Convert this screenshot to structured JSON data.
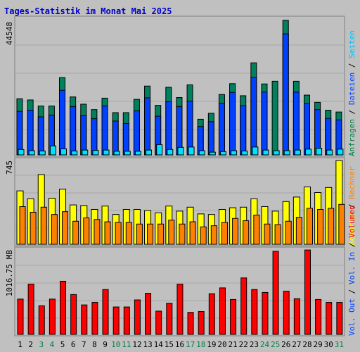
{
  "title": "Tages-Statistik im Monat Mai 2025",
  "colors": {
    "background": "#c0c0c0",
    "title": "#0000cc",
    "anfragen": "#00805c",
    "dateien": "#0040ff",
    "seiten": "#00e0ff",
    "besuche": "#ffff00",
    "rechner": "#ff8000",
    "volumen": "#ff0000",
    "grid": "#a8a8a8",
    "weekend_label": "#008040"
  },
  "right_labels": {
    "top": [
      {
        "text": "Anfragen",
        "color": "#008040"
      },
      {
        "text": "Dateien",
        "color": "#0040ff"
      },
      {
        "text": "Seiten",
        "color": "#00c0ff"
      }
    ],
    "middle": [
      {
        "text": "Besuche",
        "color": "#ffff00"
      },
      {
        "text": "Rechner",
        "color": "#ff8000"
      }
    ],
    "bottom": [
      {
        "text": "Vol. Out",
        "color": "#0040ff"
      },
      {
        "text": "Vol. In",
        "color": "#0040ff"
      },
      {
        "text": "Volumen",
        "color": "#ff0000"
      }
    ],
    "separator": " / "
  },
  "chart_data": [
    {
      "type": "bar",
      "panel": "requests",
      "ymax_label": "44548",
      "ylim": [
        0,
        44548
      ],
      "categories": [
        "1",
        "2",
        "3",
        "4",
        "5",
        "6",
        "7",
        "8",
        "9",
        "10",
        "11",
        "12",
        "13",
        "14",
        "15",
        "16",
        "17",
        "18",
        "19",
        "20",
        "21",
        "22",
        "23",
        "24",
        "25",
        "26",
        "27",
        "28",
        "29",
        "30",
        "31"
      ],
      "series": [
        {
          "name": "Anfragen",
          "values": [
            18600,
            18200,
            16200,
            16200,
            25600,
            19200,
            16800,
            15000,
            18800,
            14000,
            14000,
            18400,
            22800,
            16400,
            22400,
            19000,
            23200,
            11800,
            13800,
            20000,
            23600,
            19600,
            30500,
            23500,
            24400,
            44600,
            24400,
            19800,
            17400,
            14800,
            14200
          ]
        },
        {
          "name": "Dateien",
          "values": [
            14400,
            14800,
            12600,
            13200,
            21400,
            16000,
            13000,
            12000,
            16200,
            11200,
            10400,
            14600,
            18900,
            12800,
            17600,
            16000,
            17800,
            9400,
            11000,
            17100,
            20700,
            16300,
            25600,
            20800,
            0,
            40100,
            20800,
            17000,
            15000,
            12100,
            11600
          ]
        },
        {
          "name": "Seiten",
          "values": [
            1800,
            1400,
            1300,
            3000,
            2000,
            1300,
            1600,
            1500,
            1600,
            1200,
            1200,
            1200,
            1600,
            3400,
            1800,
            2500,
            2600,
            1400,
            900,
            1100,
            1400,
            1300,
            2600,
            1600,
            1400,
            1400,
            1600,
            1900,
            2200,
            1600,
            1900
          ]
        }
      ]
    },
    {
      "type": "bar",
      "panel": "visits",
      "ymax_label": "745",
      "ylim": [
        0,
        745
      ],
      "categories": [
        "1",
        "2",
        "3",
        "4",
        "5",
        "6",
        "7",
        "8",
        "9",
        "10",
        "11",
        "12",
        "13",
        "14",
        "15",
        "16",
        "17",
        "18",
        "19",
        "20",
        "21",
        "22",
        "23",
        "24",
        "25",
        "26",
        "27",
        "28",
        "29",
        "30",
        "31"
      ],
      "series": [
        {
          "name": "Besuche",
          "values": [
            475,
            405,
            620,
            410,
            490,
            350,
            345,
            310,
            340,
            265,
            310,
            310,
            300,
            280,
            340,
            295,
            330,
            270,
            265,
            310,
            325,
            330,
            405,
            335,
            295,
            380,
            420,
            510,
            460,
            505,
            745
          ]
        },
        {
          "name": "Rechner",
          "values": [
            335,
            285,
            330,
            265,
            290,
            205,
            235,
            220,
            200,
            195,
            195,
            180,
            180,
            180,
            215,
            180,
            200,
            155,
            165,
            195,
            230,
            210,
            260,
            180,
            175,
            205,
            240,
            320,
            310,
            320,
            355
          ]
        }
      ]
    },
    {
      "type": "bar",
      "panel": "volume",
      "ymax_label": "1016.75 MB",
      "ylim": [
        0,
        1016.75
      ],
      "categories": [
        "1",
        "2",
        "3",
        "4",
        "5",
        "6",
        "7",
        "8",
        "9",
        "10",
        "11",
        "12",
        "13",
        "14",
        "15",
        "16",
        "17",
        "18",
        "19",
        "20",
        "21",
        "22",
        "23",
        "24",
        "25",
        "26",
        "27",
        "28",
        "29",
        "30",
        "31"
      ],
      "series": [
        {
          "name": "Volumen",
          "values": [
            425,
            605,
            345,
            425,
            640,
            480,
            355,
            385,
            540,
            330,
            330,
            415,
            495,
            280,
            375,
            605,
            265,
            275,
            490,
            560,
            420,
            680,
            540,
            505,
            1000,
            520,
            430,
            1016,
            420,
            385,
            385
          ]
        }
      ]
    }
  ],
  "x_labels": [
    {
      "text": "1",
      "weekend": false
    },
    {
      "text": "2",
      "weekend": false
    },
    {
      "text": "3",
      "weekend": true
    },
    {
      "text": "4",
      "weekend": true
    },
    {
      "text": "5",
      "weekend": false
    },
    {
      "text": "6",
      "weekend": false
    },
    {
      "text": "7",
      "weekend": false
    },
    {
      "text": "8",
      "weekend": false
    },
    {
      "text": "9",
      "weekend": false
    },
    {
      "text": "10",
      "weekend": true
    },
    {
      "text": "11",
      "weekend": true
    },
    {
      "text": "12",
      "weekend": false
    },
    {
      "text": "13",
      "weekend": false
    },
    {
      "text": "14",
      "weekend": false
    },
    {
      "text": "15",
      "weekend": false
    },
    {
      "text": "16",
      "weekend": false
    },
    {
      "text": "17",
      "weekend": true
    },
    {
      "text": "18",
      "weekend": true
    },
    {
      "text": "19",
      "weekend": false
    },
    {
      "text": "20",
      "weekend": false
    },
    {
      "text": "21",
      "weekend": false
    },
    {
      "text": "22",
      "weekend": false
    },
    {
      "text": "23",
      "weekend": false
    },
    {
      "text": "24",
      "weekend": true
    },
    {
      "text": "25",
      "weekend": true
    },
    {
      "text": "26",
      "weekend": false
    },
    {
      "text": "27",
      "weekend": false
    },
    {
      "text": "28",
      "weekend": false
    },
    {
      "text": "29",
      "weekend": false
    },
    {
      "text": "30",
      "weekend": false
    },
    {
      "text": "31",
      "weekend": true
    }
  ]
}
